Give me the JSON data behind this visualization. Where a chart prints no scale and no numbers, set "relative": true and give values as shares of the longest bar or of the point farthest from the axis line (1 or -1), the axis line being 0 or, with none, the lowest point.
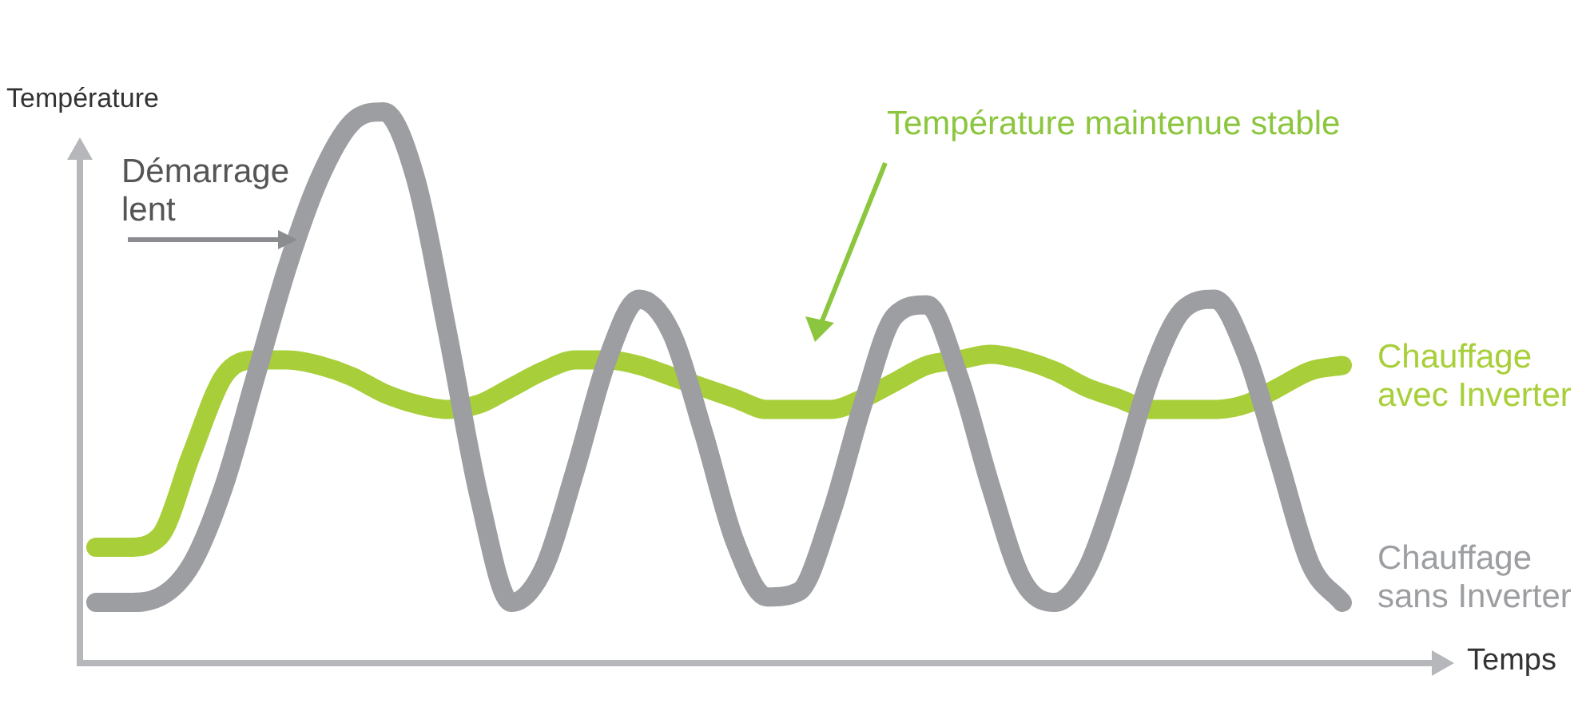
{
  "chart_data": {
    "type": "line",
    "relative": true,
    "xlabel": "Temps",
    "ylabel": "Température",
    "categories": [
      null,
      null,
      null,
      null,
      null,
      null,
      null,
      null,
      null,
      null,
      null,
      null,
      null,
      null,
      null,
      null,
      null,
      null,
      null,
      null,
      null,
      null,
      null,
      null,
      null,
      null,
      null,
      null,
      null,
      null,
      null,
      null,
      null,
      null,
      null,
      null,
      null,
      null,
      null,
      null
    ],
    "series": [
      {
        "name": "Chauffage sans Inverter",
        "color": "#9c9ea1",
        "values": [
          0.11,
          0.11,
          0.12,
          0.18,
          0.32,
          0.52,
          0.72,
          0.88,
          0.98,
          1.0,
          0.88,
          0.6,
          0.3,
          0.11,
          0.17,
          0.35,
          0.55,
          0.66,
          0.6,
          0.42,
          0.22,
          0.12,
          0.13,
          0.27,
          0.47,
          0.63,
          0.65,
          0.52,
          0.32,
          0.15,
          0.11,
          0.17,
          0.33,
          0.52,
          0.64,
          0.66,
          0.56,
          0.37,
          0.18,
          0.11
        ]
      },
      {
        "name": "Chauffage avec Inverter",
        "color": "#a8cf3a",
        "values": [
          0.21,
          0.21,
          0.23,
          0.38,
          0.52,
          0.55,
          0.55,
          0.54,
          0.52,
          0.49,
          0.47,
          0.46,
          0.47,
          0.5,
          0.53,
          0.55,
          0.55,
          0.54,
          0.52,
          0.5,
          0.48,
          0.46,
          0.46,
          0.46,
          0.48,
          0.51,
          0.54,
          0.55,
          0.56,
          0.55,
          0.53,
          0.5,
          0.48,
          0.46,
          0.46,
          0.46,
          0.47,
          0.5,
          0.53,
          0.54
        ]
      }
    ],
    "annotations": [
      "Démarrage lent",
      "Température maintenue stable"
    ],
    "legend": false,
    "marker": "none",
    "line_style": "solid"
  }
}
